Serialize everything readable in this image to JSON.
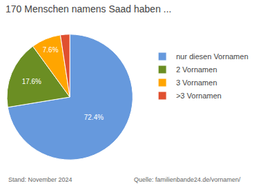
{
  "chart_data": {
    "type": "pie",
    "title": "170 Menschen namens Saad haben ...",
    "categories": [
      "nur diesen Vornamen",
      "2 Vornamen",
      "3 Vornamen",
      ">3 Vornamen"
    ],
    "values": [
      72.4,
      17.6,
      7.6,
      2.4
    ],
    "value_labels": [
      "72.4%",
      "17.6%",
      "7.6%",
      null
    ],
    "colors": [
      "#6699DD",
      "#6B8E23",
      "#FFA500",
      "#E05030"
    ],
    "data_labels": true,
    "legend": "right",
    "annotations": [
      "Stand: November 2024",
      "Quelle: familienbande24.de/vornamen/"
    ]
  }
}
